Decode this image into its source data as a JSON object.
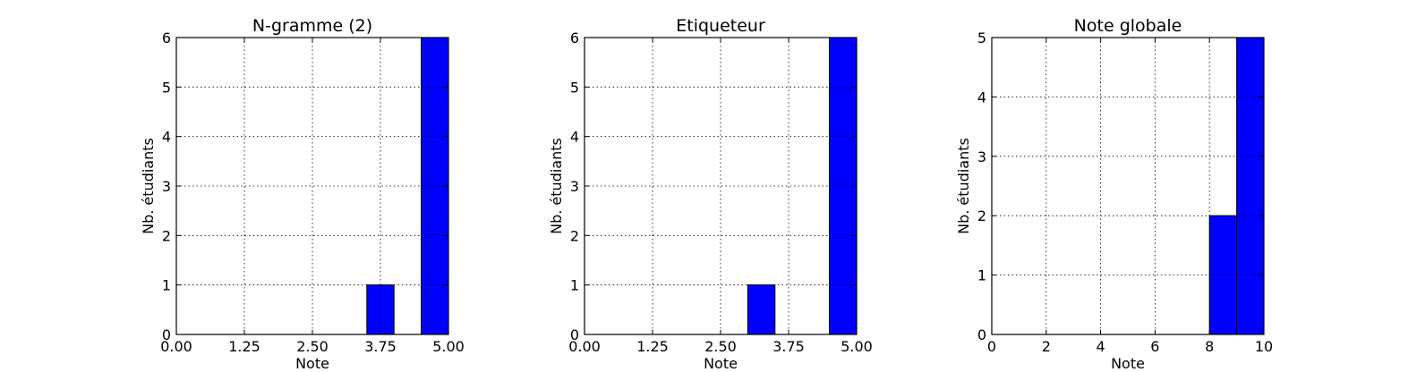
{
  "chart_data": [
    {
      "type": "bar",
      "title": "N-gramme (2)",
      "xlabel": "Note",
      "ylabel": "Nb. étudiants",
      "xlim": [
        0,
        5
      ],
      "ylim": [
        0,
        6
      ],
      "xticks": [
        "0.00",
        "1.25",
        "2.50",
        "3.75",
        "5.00"
      ],
      "yticks": [
        "0",
        "1",
        "2",
        "3",
        "4",
        "5",
        "6"
      ],
      "grid": true,
      "bar_color": "#0000ff",
      "bins": [
        {
          "x0": 0.0,
          "x1": 0.5,
          "value": 0
        },
        {
          "x0": 0.5,
          "x1": 1.0,
          "value": 0
        },
        {
          "x0": 1.0,
          "x1": 1.5,
          "value": 0
        },
        {
          "x0": 1.5,
          "x1": 2.0,
          "value": 0
        },
        {
          "x0": 2.0,
          "x1": 2.5,
          "value": 0
        },
        {
          "x0": 2.5,
          "x1": 3.0,
          "value": 0
        },
        {
          "x0": 3.0,
          "x1": 3.5,
          "value": 0
        },
        {
          "x0": 3.5,
          "x1": 4.0,
          "value": 1
        },
        {
          "x0": 4.0,
          "x1": 4.5,
          "value": 0
        },
        {
          "x0": 4.5,
          "x1": 5.0,
          "value": 6
        }
      ]
    },
    {
      "type": "bar",
      "title": "Etiqueteur",
      "xlabel": "Note",
      "ylabel": "Nb. étudiants",
      "xlim": [
        0,
        5
      ],
      "ylim": [
        0,
        6
      ],
      "xticks": [
        "0.00",
        "1.25",
        "2.50",
        "3.75",
        "5.00"
      ],
      "yticks": [
        "0",
        "1",
        "2",
        "3",
        "4",
        "5",
        "6"
      ],
      "grid": true,
      "bar_color": "#0000ff",
      "bins": [
        {
          "x0": 0.0,
          "x1": 0.5,
          "value": 0
        },
        {
          "x0": 0.5,
          "x1": 1.0,
          "value": 0
        },
        {
          "x0": 1.0,
          "x1": 1.5,
          "value": 0
        },
        {
          "x0": 1.5,
          "x1": 2.0,
          "value": 0
        },
        {
          "x0": 2.0,
          "x1": 2.5,
          "value": 0
        },
        {
          "x0": 2.5,
          "x1": 3.0,
          "value": 0
        },
        {
          "x0": 3.0,
          "x1": 3.5,
          "value": 1
        },
        {
          "x0": 3.5,
          "x1": 4.0,
          "value": 0
        },
        {
          "x0": 4.0,
          "x1": 4.5,
          "value": 0
        },
        {
          "x0": 4.5,
          "x1": 5.0,
          "value": 6
        }
      ]
    },
    {
      "type": "bar",
      "title": "Note globale",
      "xlabel": "Note",
      "ylabel": "Nb. étudiants",
      "xlim": [
        0,
        10
      ],
      "ylim": [
        0,
        5
      ],
      "xticks": [
        "0",
        "2",
        "4",
        "6",
        "8",
        "10"
      ],
      "yticks": [
        "0",
        "1",
        "2",
        "3",
        "4",
        "5"
      ],
      "grid": true,
      "bar_color": "#0000ff",
      "bins": [
        {
          "x0": 0,
          "x1": 1,
          "value": 0
        },
        {
          "x0": 1,
          "x1": 2,
          "value": 0
        },
        {
          "x0": 2,
          "x1": 3,
          "value": 0
        },
        {
          "x0": 3,
          "x1": 4,
          "value": 0
        },
        {
          "x0": 4,
          "x1": 5,
          "value": 0
        },
        {
          "x0": 5,
          "x1": 6,
          "value": 0
        },
        {
          "x0": 6,
          "x1": 7,
          "value": 0
        },
        {
          "x0": 7,
          "x1": 8,
          "value": 0
        },
        {
          "x0": 8,
          "x1": 9,
          "value": 2
        },
        {
          "x0": 9,
          "x1": 10,
          "value": 5
        }
      ]
    }
  ]
}
